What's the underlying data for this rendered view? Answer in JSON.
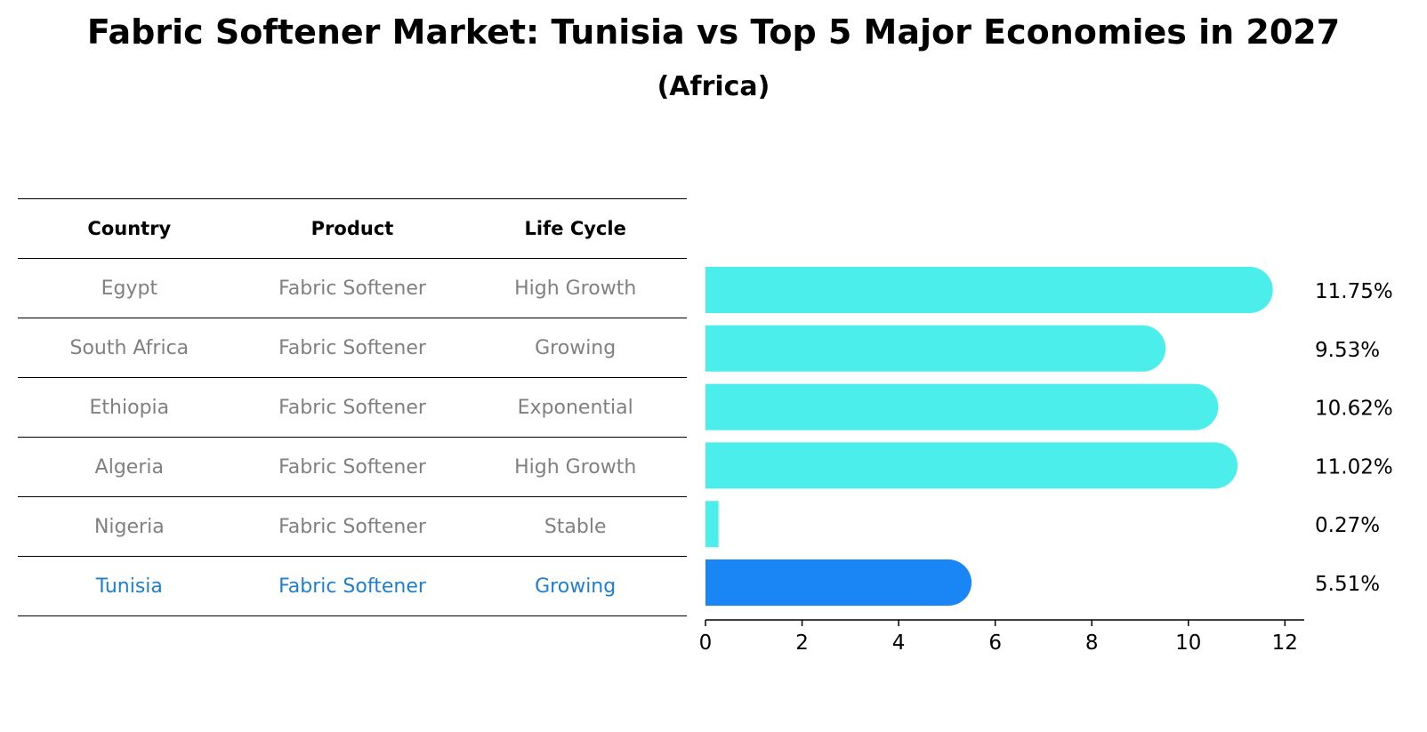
{
  "title": "Fabric Softener Market: Tunisia vs Top 5 Major Economies in 2027",
  "subtitle": "(Africa)",
  "table": {
    "headers": [
      "Country",
      "Product",
      "Life Cycle"
    ],
    "rows": [
      [
        "Egypt",
        "Fabric Softener",
        "High Growth"
      ],
      [
        "South Africa",
        "Fabric Softener",
        "Growing"
      ],
      [
        "Ethiopia",
        "Fabric Softener",
        "Exponential"
      ],
      [
        "Algeria",
        "Fabric Softener",
        "High Growth"
      ],
      [
        "Nigeria",
        "Fabric Softener",
        "Stable"
      ],
      [
        "Tunisia",
        "Fabric Softener",
        "Growing"
      ]
    ]
  },
  "chart_data": {
    "type": "bar",
    "orientation": "horizontal",
    "categories": [
      "Egypt",
      "South Africa",
      "Ethiopia",
      "Algeria",
      "Nigeria",
      "Tunisia"
    ],
    "values": [
      11.75,
      9.53,
      10.62,
      11.02,
      0.27,
      5.51
    ],
    "value_labels": [
      "11.75%",
      "9.53%",
      "10.62%",
      "11.02%",
      "0.27%",
      "5.51%"
    ],
    "xticks": [
      0,
      2,
      4,
      6,
      8,
      10,
      12
    ],
    "xlim": [
      0,
      12.4
    ],
    "highlight": "Tunisia",
    "colors": {
      "default": "#4beeea",
      "highlight": "#1a86f5"
    },
    "grid": false
  }
}
